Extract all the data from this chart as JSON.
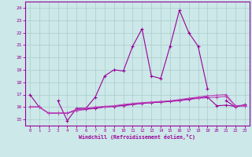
{
  "xlabel": "Windchill (Refroidissement éolien,°C)",
  "x": [
    0,
    1,
    2,
    3,
    4,
    5,
    6,
    7,
    8,
    9,
    10,
    11,
    12,
    13,
    14,
    15,
    16,
    17,
    18,
    19,
    20,
    21,
    22,
    23
  ],
  "line1": [
    17.0,
    16.0,
    null,
    16.5,
    14.9,
    15.9,
    15.9,
    16.8,
    18.5,
    19.0,
    18.9,
    20.9,
    22.3,
    18.5,
    18.3,
    20.9,
    23.8,
    22.0,
    20.9,
    17.5,
    null,
    16.5,
    16.0,
    16.2
  ],
  "line2": [
    16.0,
    16.0,
    15.5,
    15.5,
    15.5,
    15.7,
    15.8,
    15.9,
    16.0,
    16.05,
    16.1,
    16.2,
    16.3,
    16.35,
    16.4,
    16.45,
    16.5,
    16.6,
    16.7,
    16.75,
    16.8,
    16.85,
    16.1,
    16.15
  ],
  "line3": [
    16.0,
    16.0,
    15.5,
    15.5,
    15.5,
    15.8,
    15.85,
    15.9,
    16.0,
    16.05,
    16.15,
    16.2,
    16.3,
    16.35,
    16.4,
    16.45,
    16.55,
    16.65,
    16.75,
    16.8,
    16.1,
    16.15,
    16.05,
    16.1
  ],
  "line4": [
    16.0,
    16.0,
    15.5,
    15.5,
    15.5,
    15.8,
    15.9,
    16.0,
    16.05,
    16.1,
    16.2,
    16.3,
    16.35,
    16.4,
    16.45,
    16.5,
    16.6,
    16.7,
    16.8,
    16.9,
    16.95,
    17.0,
    16.1,
    16.1
  ],
  "bg_color": "#cce8e8",
  "grid_color": "#aacccc",
  "line_color": "#990099",
  "line_color2": "#bb44bb",
  "ylim": [
    14.5,
    24.5
  ],
  "xlim": [
    -0.5,
    23.5
  ],
  "yticks": [
    15,
    16,
    17,
    18,
    19,
    20,
    21,
    22,
    23,
    24
  ],
  "xticks": [
    0,
    1,
    2,
    3,
    4,
    5,
    6,
    7,
    8,
    9,
    10,
    11,
    12,
    13,
    14,
    15,
    16,
    17,
    18,
    19,
    20,
    21,
    22,
    23
  ]
}
